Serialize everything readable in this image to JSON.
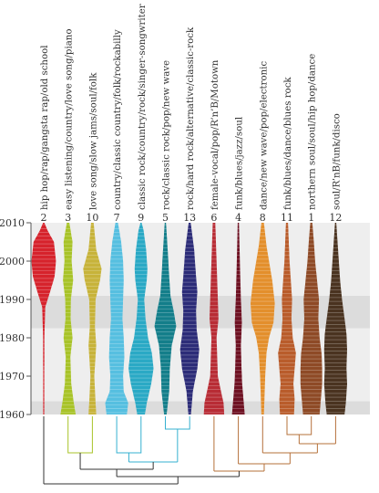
{
  "chart_data": {
    "type": "violin",
    "title": "",
    "xlabel": "",
    "ylabel": "",
    "ylim": [
      1960,
      2010
    ],
    "y_ticks": [
      1960,
      1970,
      1980,
      1990,
      2000,
      2010
    ],
    "background_bands": [
      {
        "from": 1960,
        "to": 1963.5,
        "shade": "dark"
      },
      {
        "from": 1963.5,
        "to": 1982.5,
        "shade": "light"
      },
      {
        "from": 1982.5,
        "to": 1991,
        "shade": "dark"
      },
      {
        "from": 1991,
        "to": 2010,
        "shade": "light"
      }
    ],
    "series": [
      {
        "label": "hip hop/rap/gangsta rap/old school",
        "cluster": "2",
        "color": "#d6232c",
        "profile": [
          [
            1960,
            0.04
          ],
          [
            1980,
            0.05
          ],
          [
            1988,
            0.12
          ],
          [
            1992,
            0.5
          ],
          [
            1996,
            0.85
          ],
          [
            2000,
            0.96
          ],
          [
            2005,
            0.8
          ],
          [
            2008,
            0.3
          ],
          [
            2010,
            0.05
          ]
        ]
      },
      {
        "label": "easy listening/country/love song/piano",
        "cluster": "3",
        "color": "#a8c328",
        "profile": [
          [
            1960,
            0.6
          ],
          [
            1963,
            0.45
          ],
          [
            1968,
            0.25
          ],
          [
            1975,
            0.18
          ],
          [
            1980,
            0.35
          ],
          [
            1985,
            0.2
          ],
          [
            1990,
            0.22
          ],
          [
            1995,
            0.4
          ],
          [
            2000,
            0.28
          ],
          [
            2005,
            0.35
          ],
          [
            2010,
            0.1
          ]
        ]
      },
      {
        "label": "love song/slow jams/soul/folk",
        "cluster": "10",
        "color": "#c7b33a",
        "profile": [
          [
            1960,
            0.3
          ],
          [
            1965,
            0.22
          ],
          [
            1970,
            0.15
          ],
          [
            1978,
            0.3
          ],
          [
            1983,
            0.2
          ],
          [
            1990,
            0.25
          ],
          [
            1995,
            0.6
          ],
          [
            1998,
            0.72
          ],
          [
            2003,
            0.3
          ],
          [
            2010,
            0.1
          ]
        ]
      },
      {
        "label": "country/classic country/folk/rockabilly",
        "cluster": "7",
        "color": "#56bfe0",
        "profile": [
          [
            1960,
            0.8
          ],
          [
            1963,
            0.9
          ],
          [
            1966,
            0.55
          ],
          [
            1970,
            0.5
          ],
          [
            1975,
            0.6
          ],
          [
            1980,
            0.55
          ],
          [
            1985,
            0.45
          ],
          [
            1990,
            0.5
          ],
          [
            1995,
            0.55
          ],
          [
            2000,
            0.5
          ],
          [
            2005,
            0.35
          ],
          [
            2010,
            0.1
          ]
        ]
      },
      {
        "label": "classic rock/country/rock/singer-songwriter",
        "cluster": "9",
        "color": "#2aa9c5",
        "profile": [
          [
            1960,
            0.3
          ],
          [
            1963,
            0.45
          ],
          [
            1968,
            0.8
          ],
          [
            1972,
            0.98
          ],
          [
            1976,
            0.85
          ],
          [
            1980,
            0.55
          ],
          [
            1985,
            0.35
          ],
          [
            1990,
            0.25
          ],
          [
            1995,
            0.45
          ],
          [
            1998,
            0.5
          ],
          [
            2003,
            0.4
          ],
          [
            2008,
            0.2
          ],
          [
            2010,
            0.05
          ]
        ]
      },
      {
        "label": "rock/classic rock/pop/new wave",
        "cluster": "5",
        "color": "#137e8a",
        "profile": [
          [
            1960,
            0.1
          ],
          [
            1966,
            0.3
          ],
          [
            1972,
            0.35
          ],
          [
            1978,
            0.5
          ],
          [
            1983,
            0.85
          ],
          [
            1987,
            0.65
          ],
          [
            1991,
            0.4
          ],
          [
            1996,
            0.3
          ],
          [
            2002,
            0.2
          ],
          [
            2010,
            0.05
          ]
        ]
      },
      {
        "label": "rock/hard rock/alternative/classic-rock",
        "cluster": "13",
        "color": "#2c2c78",
        "profile": [
          [
            1960,
            0.1
          ],
          [
            1966,
            0.25
          ],
          [
            1972,
            0.6
          ],
          [
            1977,
            0.75
          ],
          [
            1982,
            0.55
          ],
          [
            1987,
            0.5
          ],
          [
            1992,
            0.6
          ],
          [
            1996,
            0.5
          ],
          [
            2003,
            0.35
          ],
          [
            2010,
            0.08
          ]
        ]
      },
      {
        "label": "female-vocal/pop/R’n’B/Motown",
        "cluster": "6",
        "color": "#b82c35",
        "profile": [
          [
            1960,
            0.8
          ],
          [
            1963,
            0.75
          ],
          [
            1966,
            0.55
          ],
          [
            1970,
            0.3
          ],
          [
            1975,
            0.25
          ],
          [
            1980,
            0.2
          ],
          [
            1985,
            0.35
          ],
          [
            1990,
            0.3
          ],
          [
            1995,
            0.25
          ],
          [
            2000,
            0.2
          ],
          [
            2005,
            0.15
          ],
          [
            2010,
            0.1
          ]
        ]
      },
      {
        "label": "funk/blues/jazz/soul",
        "cluster": "4",
        "color": "#6e1122",
        "profile": [
          [
            1960,
            0.5
          ],
          [
            1964,
            0.4
          ],
          [
            1968,
            0.3
          ],
          [
            1972,
            0.25
          ],
          [
            1978,
            0.2
          ],
          [
            1984,
            0.28
          ],
          [
            1990,
            0.2
          ],
          [
            1996,
            0.15
          ],
          [
            2000,
            0.12
          ],
          [
            2010,
            0.05
          ]
        ]
      },
      {
        "label": "dance/new wave/pop/electronic",
        "cluster": "8",
        "color": "#e38f2c",
        "profile": [
          [
            1960,
            0.1
          ],
          [
            1970,
            0.2
          ],
          [
            1976,
            0.3
          ],
          [
            1980,
            0.5
          ],
          [
            1984,
            0.85
          ],
          [
            1989,
            0.95
          ],
          [
            1995,
            0.75
          ],
          [
            2000,
            0.5
          ],
          [
            2004,
            0.3
          ],
          [
            2010,
            0.1
          ]
        ]
      },
      {
        "label": "funk/blues/dance/blues rock",
        "cluster": "11",
        "color": "#b95c2b",
        "profile": [
          [
            1960,
            0.55
          ],
          [
            1964,
            0.6
          ],
          [
            1968,
            0.5
          ],
          [
            1972,
            0.6
          ],
          [
            1976,
            0.7
          ],
          [
            1980,
            0.45
          ],
          [
            1985,
            0.35
          ],
          [
            1990,
            0.4
          ],
          [
            1995,
            0.3
          ],
          [
            2000,
            0.2
          ],
          [
            2010,
            0.08
          ]
        ]
      },
      {
        "label": "northern soul/soul/hip hop/dance",
        "cluster": "1",
        "color": "#8e4a26",
        "profile": [
          [
            1960,
            0.65
          ],
          [
            1964,
            0.75
          ],
          [
            1968,
            0.85
          ],
          [
            1972,
            0.85
          ],
          [
            1976,
            0.8
          ],
          [
            1980,
            0.65
          ],
          [
            1985,
            0.55
          ],
          [
            1990,
            0.6
          ],
          [
            1995,
            0.45
          ],
          [
            2000,
            0.3
          ],
          [
            2005,
            0.2
          ],
          [
            2010,
            0.08
          ]
        ]
      },
      {
        "label": "soul/R’nB/funk/disco",
        "cluster": "12",
        "color": "#4a3320",
        "profile": [
          [
            1960,
            0.7
          ],
          [
            1963,
            0.8
          ],
          [
            1968,
            0.9
          ],
          [
            1972,
            0.85
          ],
          [
            1977,
            0.9
          ],
          [
            1981,
            0.85
          ],
          [
            1985,
            0.7
          ],
          [
            1990,
            0.5
          ],
          [
            1995,
            0.35
          ],
          [
            2000,
            0.25
          ],
          [
            2005,
            0.15
          ],
          [
            2010,
            0.05
          ]
        ]
      }
    ],
    "dendrogram": {
      "link_colors": {
        "green": "#a8c328",
        "blue": "#35b0d0",
        "brown": "#b5703a",
        "black": "#333333"
      },
      "note_colors_only": true
    }
  }
}
